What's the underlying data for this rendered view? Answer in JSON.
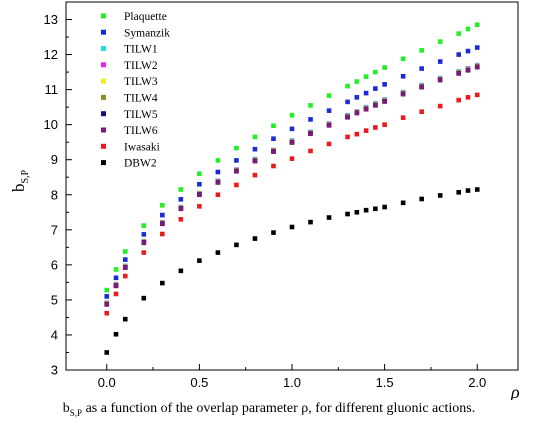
{
  "chart_data": {
    "type": "scatter",
    "title": "",
    "xlabel": "ρ",
    "ylabel": "b",
    "ylabel_sub": "S,P",
    "xlim": [
      -0.22,
      2.22
    ],
    "ylim": [
      3,
      13.5
    ],
    "xticks": [
      0.0,
      0.5,
      1.0,
      1.5,
      2.0
    ],
    "xtick_labels": [
      "0.0",
      "0.5",
      "1.0",
      "1.5",
      "2.0"
    ],
    "yticks": [
      3,
      4,
      5,
      6,
      7,
      8,
      9,
      10,
      11,
      12,
      13
    ],
    "ytick_labels": [
      "3",
      "4",
      "5",
      "6",
      "7",
      "8",
      "9",
      "10",
      "11",
      "12",
      "13"
    ],
    "grid": false,
    "legend_position": "top-left",
    "x": [
      0.0,
      0.05,
      0.1,
      0.2,
      0.3,
      0.4,
      0.5,
      0.6,
      0.7,
      0.8,
      0.9,
      1.0,
      1.1,
      1.2,
      1.3,
      1.35,
      1.4,
      1.45,
      1.5,
      1.6,
      1.7,
      1.8,
      1.9,
      1.95,
      2.0
    ],
    "series": [
      {
        "name": "Plaquette",
        "color": "#22ee22",
        "values": [
          5.28,
          5.87,
          6.38,
          7.12,
          7.7,
          8.15,
          8.6,
          8.98,
          9.33,
          9.65,
          9.97,
          10.27,
          10.55,
          10.83,
          11.1,
          11.23,
          11.37,
          11.5,
          11.63,
          11.88,
          12.12,
          12.37,
          12.6,
          12.73,
          12.85
        ]
      },
      {
        "name": "Symanzik",
        "color": "#1a2bd6",
        "values": [
          5.1,
          5.63,
          6.15,
          6.87,
          7.42,
          7.87,
          8.3,
          8.65,
          8.98,
          9.3,
          9.6,
          9.88,
          10.15,
          10.4,
          10.65,
          10.78,
          10.9,
          11.03,
          11.15,
          11.38,
          11.6,
          11.8,
          12.0,
          12.1,
          12.2
        ]
      },
      {
        "name": "TILW1",
        "color": "#22dddd",
        "values": [
          4.92,
          5.45,
          5.97,
          6.68,
          7.22,
          7.65,
          8.05,
          8.4,
          8.72,
          9.02,
          9.28,
          9.55,
          9.8,
          10.03,
          10.27,
          10.38,
          10.5,
          10.61,
          10.72,
          10.93,
          11.13,
          11.33,
          11.52,
          11.61,
          11.7
        ]
      },
      {
        "name": "TILW2",
        "color": "#ee22ee",
        "values": [
          4.91,
          5.44,
          5.96,
          6.67,
          7.21,
          7.64,
          8.04,
          8.39,
          8.71,
          9.0,
          9.27,
          9.53,
          9.78,
          10.02,
          10.25,
          10.37,
          10.48,
          10.59,
          10.7,
          10.91,
          11.11,
          11.31,
          11.5,
          11.59,
          11.68
        ]
      },
      {
        "name": "TILW3",
        "color": "#eeee22",
        "values": [
          4.9,
          5.43,
          5.95,
          6.66,
          7.2,
          7.63,
          8.03,
          8.38,
          8.7,
          8.99,
          9.26,
          9.52,
          9.77,
          10.01,
          10.24,
          10.36,
          10.47,
          10.58,
          10.69,
          10.9,
          11.1,
          11.3,
          11.49,
          11.58,
          11.67
        ]
      },
      {
        "name": "TILW4",
        "color": "#8a8a22",
        "values": [
          4.89,
          5.42,
          5.94,
          6.65,
          7.19,
          7.62,
          8.02,
          8.37,
          8.69,
          8.98,
          9.25,
          9.51,
          9.76,
          10.0,
          10.23,
          10.35,
          10.46,
          10.57,
          10.68,
          10.89,
          11.09,
          11.29,
          11.48,
          11.57,
          11.66
        ]
      },
      {
        "name": "TILW5",
        "color": "#12127a",
        "values": [
          4.88,
          5.41,
          5.93,
          6.64,
          7.18,
          7.61,
          8.01,
          8.36,
          8.68,
          8.97,
          9.24,
          9.5,
          9.75,
          9.99,
          10.22,
          10.34,
          10.45,
          10.56,
          10.67,
          10.88,
          11.08,
          11.28,
          11.47,
          11.56,
          11.65
        ]
      },
      {
        "name": "TILW6",
        "color": "#7a1a7a",
        "values": [
          4.87,
          5.4,
          5.92,
          6.63,
          7.17,
          7.6,
          8.0,
          8.35,
          8.67,
          8.96,
          9.23,
          9.49,
          9.74,
          9.98,
          10.21,
          10.33,
          10.44,
          10.55,
          10.66,
          10.87,
          11.07,
          11.27,
          11.46,
          11.55,
          11.64
        ]
      },
      {
        "name": "Iwasaki",
        "color": "#e81c1c",
        "values": [
          4.62,
          5.17,
          5.68,
          6.35,
          6.88,
          7.3,
          7.67,
          8.0,
          8.28,
          8.56,
          8.82,
          9.03,
          9.25,
          9.45,
          9.65,
          9.73,
          9.83,
          9.92,
          10.0,
          10.2,
          10.37,
          10.53,
          10.7,
          10.78,
          10.85
        ]
      },
      {
        "name": "DBW2",
        "color": "#000000",
        "values": [
          3.5,
          4.02,
          4.45,
          5.05,
          5.48,
          5.83,
          6.12,
          6.35,
          6.57,
          6.75,
          6.92,
          7.08,
          7.22,
          7.35,
          7.45,
          7.5,
          7.56,
          7.6,
          7.65,
          7.77,
          7.88,
          7.98,
          8.07,
          8.12,
          8.15
        ]
      }
    ]
  },
  "caption": {
    "b": "b",
    "sub": "S,P",
    "rest": " as a function of the overlap parameter ρ, for different gluonic actions."
  }
}
